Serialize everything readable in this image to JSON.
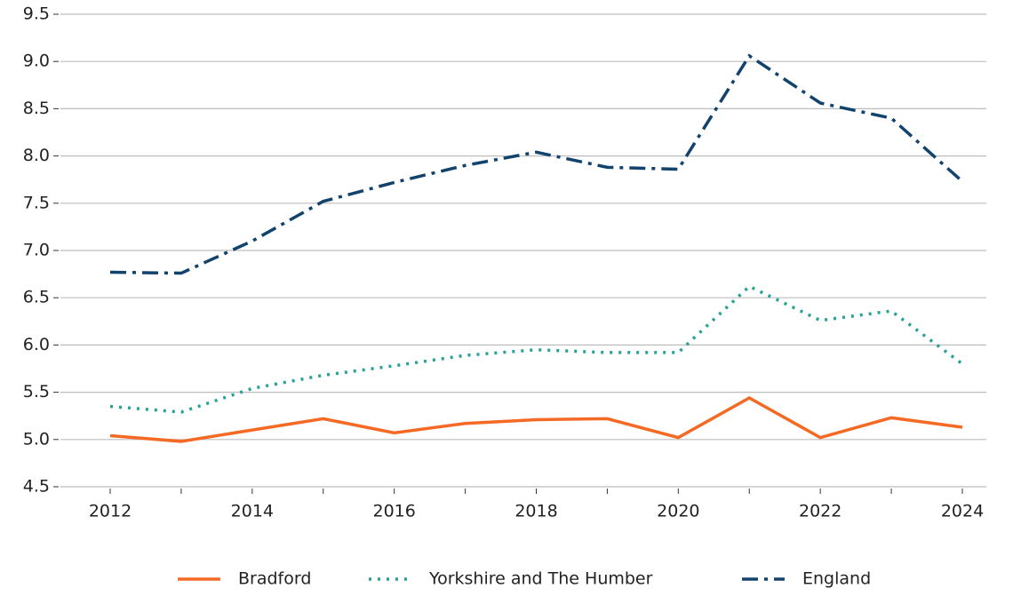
{
  "chart_data": {
    "type": "line",
    "x": [
      2012,
      2013,
      2014,
      2015,
      2016,
      2017,
      2018,
      2019,
      2020,
      2021,
      2022,
      2023,
      2024
    ],
    "series": [
      {
        "name": "Bradford",
        "color": "#f46a25",
        "linestyle": "solid",
        "values": [
          5.04,
          4.98,
          5.1,
          5.22,
          5.07,
          5.17,
          5.21,
          5.22,
          5.02,
          5.44,
          5.02,
          5.23,
          5.13
        ]
      },
      {
        "name": "Yorkshire and The Humber",
        "color": "#28a197",
        "linestyle": "dotted",
        "values": [
          5.35,
          5.29,
          5.54,
          5.68,
          5.78,
          5.89,
          5.95,
          5.92,
          5.92,
          6.62,
          6.26,
          6.36,
          5.8
        ]
      },
      {
        "name": "England",
        "color": "#12436d",
        "linestyle": "dashdot",
        "values": [
          6.77,
          6.76,
          7.1,
          7.52,
          7.72,
          7.9,
          8.04,
          7.88,
          7.86,
          9.06,
          8.56,
          8.4,
          7.73
        ]
      }
    ],
    "xlim": [
      2012,
      2024
    ],
    "xticks": [
      2012,
      2014,
      2016,
      2018,
      2020,
      2022,
      2024
    ],
    "ylim": [
      4.5,
      9.5
    ],
    "yticks": [
      4.5,
      {
        "value": 5,
        "label": "5.0"
      },
      5.5,
      {
        "value": 6,
        "label": "6.0"
      },
      6.5,
      {
        "value": 7,
        "label": "7.0"
      },
      7.5,
      {
        "value": 8,
        "label": "8.0"
      },
      8.5,
      {
        "value": 9,
        "label": "9.0"
      },
      9.5
    ],
    "grid": true,
    "legend": "bottom"
  }
}
